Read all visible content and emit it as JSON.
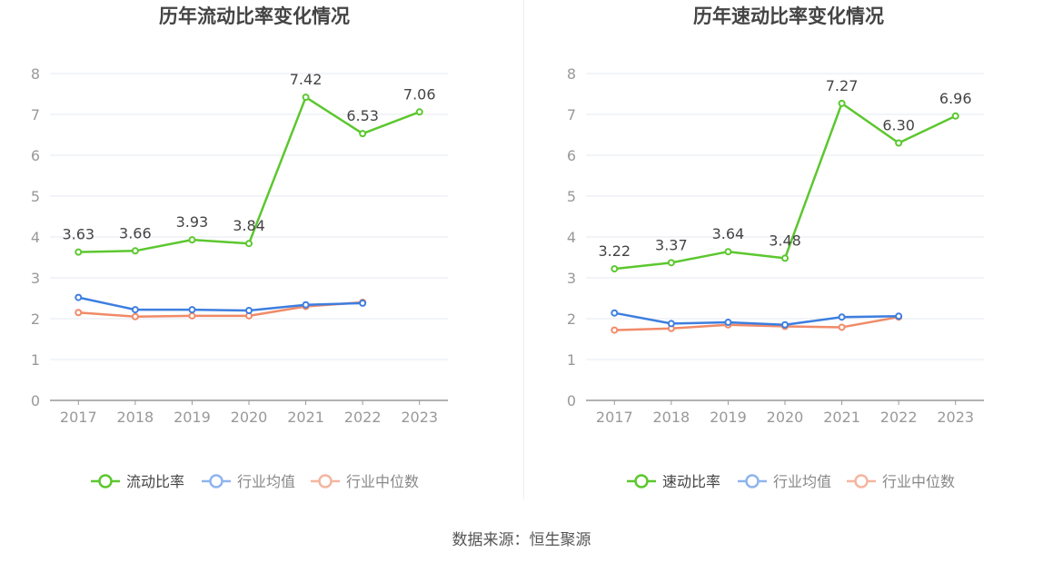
{
  "source": "数据来源：恒生聚源",
  "colors": {
    "main_series": "#5cc72f",
    "industry_avg": "#3d7ee0",
    "industry_median": "#f08a68",
    "grid": "#e6e9f0",
    "axis": "#999999",
    "label": "#999999"
  },
  "chart_data": [
    {
      "type": "line",
      "title": "历年流动比率变化情况",
      "categories": [
        "2017",
        "2018",
        "2019",
        "2020",
        "2021",
        "2022",
        "2023"
      ],
      "ylim": [
        0,
        8
      ],
      "yticks": [
        0,
        1,
        2,
        3,
        4,
        5,
        6,
        7,
        8
      ],
      "grid": true,
      "legend_position": "bottom",
      "series": [
        {
          "name": "流动比率",
          "values": [
            3.63,
            3.66,
            3.93,
            3.84,
            7.42,
            6.53,
            7.06
          ],
          "labels": [
            "3.63",
            "3.66",
            "3.93",
            "3.84",
            "7.42",
            "6.53",
            "7.06"
          ]
        },
        {
          "name": "行业均值",
          "values": [
            2.52,
            2.22,
            2.22,
            2.2,
            2.34,
            2.38,
            null
          ]
        },
        {
          "name": "行业中位数",
          "values": [
            2.15,
            2.05,
            2.07,
            2.07,
            2.3,
            2.4,
            null
          ]
        }
      ]
    },
    {
      "type": "line",
      "title": "历年速动比率变化情况",
      "categories": [
        "2017",
        "2018",
        "2019",
        "2020",
        "2021",
        "2022",
        "2023"
      ],
      "ylim": [
        0,
        8
      ],
      "yticks": [
        0,
        1,
        2,
        3,
        4,
        5,
        6,
        7,
        8
      ],
      "grid": true,
      "legend_position": "bottom",
      "series": [
        {
          "name": "速动比率",
          "values": [
            3.22,
            3.37,
            3.64,
            3.48,
            7.27,
            6.3,
            6.96
          ],
          "labels": [
            "3.22",
            "3.37",
            "3.64",
            "3.48",
            "7.27",
            "6.30",
            "6.96"
          ]
        },
        {
          "name": "行业均值",
          "values": [
            2.14,
            1.88,
            1.91,
            1.85,
            2.04,
            2.06,
            null
          ]
        },
        {
          "name": "行业中位数",
          "values": [
            1.72,
            1.76,
            1.85,
            1.81,
            1.79,
            2.04,
            null
          ]
        }
      ]
    }
  ]
}
